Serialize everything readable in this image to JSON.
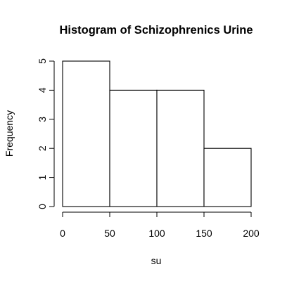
{
  "chart_data": {
    "type": "bar",
    "title": "Histogram of Schizophrenics Urine",
    "xlabel": "su",
    "ylabel": "Frequency",
    "bins": [
      {
        "from": 0,
        "to": 50,
        "count": 5
      },
      {
        "from": 50,
        "to": 100,
        "count": 4
      },
      {
        "from": 100,
        "to": 150,
        "count": 4
      },
      {
        "from": 150,
        "to": 200,
        "count": 2
      }
    ],
    "xlim": [
      0,
      200
    ],
    "ylim": [
      0,
      5
    ],
    "xticks": [
      "0",
      "50",
      "100",
      "150",
      "200"
    ],
    "yticks": [
      "0",
      "1",
      "2",
      "3",
      "4",
      "5"
    ],
    "grid": false,
    "legend": "none"
  }
}
